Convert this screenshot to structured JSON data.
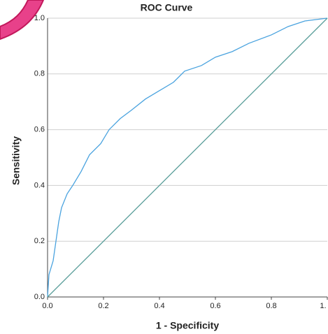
{
  "chart_data": {
    "type": "line",
    "title": "ROC Curve",
    "x_label": "1 - Specificity",
    "y_label": "Sensitivity",
    "xlim": [
      0,
      1
    ],
    "ylim": [
      0,
      1
    ],
    "xticks": [
      {
        "value": 0,
        "label": "0.0"
      },
      0.2,
      0.4,
      0.6,
      0.8,
      {
        "value": 1,
        "label": "1."
      }
    ],
    "yticks": [
      {
        "value": 0,
        "label": "0.0"
      },
      0.2,
      0.4,
      0.6,
      0.8,
      {
        "value": 1,
        "label": "1.0"
      }
    ],
    "grid": true,
    "series": [
      {
        "color": "#4aa3df",
        "x": [
          0,
          0.005,
          0.02,
          0.03,
          0.04,
          0.05,
          0.07,
          0.09,
          0.12,
          0.15,
          0.19,
          0.22,
          0.26,
          0.3,
          0.35,
          0.4,
          0.45,
          0.49,
          0.55,
          0.6,
          0.66,
          0.72,
          0.8,
          0.86,
          0.92,
          1
        ],
        "values": [
          0,
          0.08,
          0.13,
          0.2,
          0.27,
          0.32,
          0.37,
          0.4,
          0.45,
          0.51,
          0.55,
          0.6,
          0.64,
          0.67,
          0.71,
          0.74,
          0.77,
          0.81,
          0.83,
          0.86,
          0.88,
          0.91,
          0.94,
          0.97,
          0.99,
          1
        ]
      },
      {
        "color": "#5a9e9a",
        "x": [
          0,
          1
        ],
        "values": [
          0,
          1
        ]
      }
    ]
  }
}
